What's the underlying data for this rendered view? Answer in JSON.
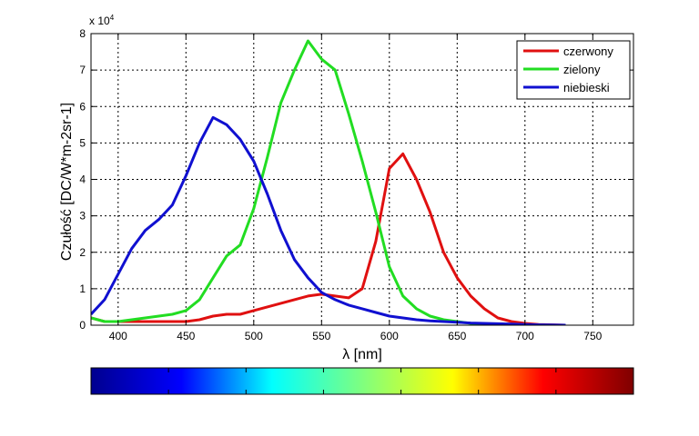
{
  "chart_data": {
    "type": "line",
    "xlabel": "λ [nm]",
    "ylabel": "Czułość [DC/W*m-2sr-1]",
    "y_multiplier": "x 10",
    "y_multiplier_exp": "4",
    "xlim": [
      380,
      780
    ],
    "ylim": [
      0,
      80000
    ],
    "xticks": [
      400,
      450,
      500,
      550,
      600,
      650,
      700,
      750
    ],
    "yticks": [
      0,
      10000,
      20000,
      30000,
      40000,
      50000,
      60000,
      70000,
      80000
    ],
    "ytick_labels": [
      "0",
      "1",
      "2",
      "3",
      "4",
      "5",
      "6",
      "7",
      "8"
    ],
    "grid": true,
    "legend_position": "top-right",
    "series": [
      {
        "name": "czerwony",
        "color": "#e01010",
        "x": [
          380,
          390,
          400,
          420,
          440,
          450,
          460,
          470,
          480,
          490,
          500,
          510,
          520,
          530,
          540,
          550,
          560,
          570,
          580,
          590,
          600,
          610,
          620,
          630,
          640,
          650,
          660,
          670,
          680,
          690,
          700,
          710,
          720,
          730
        ],
        "y": [
          2000,
          1000,
          1000,
          1000,
          1000,
          1000,
          1500,
          2500,
          3000,
          3000,
          4000,
          5000,
          6000,
          7000,
          8000,
          8500,
          8000,
          7500,
          10000,
          23000,
          43000,
          47000,
          40000,
          31000,
          20000,
          13000,
          8000,
          4500,
          2000,
          1000,
          500,
          200,
          100,
          0
        ]
      },
      {
        "name": "zielony",
        "color": "#22dd22",
        "x": [
          380,
          390,
          400,
          410,
          420,
          430,
          440,
          450,
          460,
          470,
          480,
          490,
          500,
          510,
          520,
          530,
          540,
          550,
          560,
          570,
          580,
          590,
          600,
          610,
          620,
          630,
          640,
          650,
          660,
          670,
          680,
          690,
          700
        ],
        "y": [
          2000,
          1000,
          1000,
          1500,
          2000,
          2500,
          3000,
          4000,
          7000,
          13000,
          19000,
          22000,
          32000,
          46000,
          61000,
          70000,
          78000,
          73000,
          70000,
          58000,
          45000,
          31000,
          16000,
          8000,
          4500,
          2500,
          1500,
          1000,
          500,
          300,
          200,
          100,
          0
        ]
      },
      {
        "name": "niebieski",
        "color": "#1010d0",
        "x": [
          380,
          390,
          400,
          410,
          420,
          430,
          440,
          450,
          460,
          470,
          480,
          490,
          500,
          510,
          520,
          530,
          540,
          550,
          560,
          570,
          580,
          590,
          600,
          610,
          620,
          630,
          640,
          650,
          660,
          670,
          680,
          690,
          700,
          710,
          720,
          730
        ],
        "y": [
          3000,
          7000,
          14000,
          21000,
          26000,
          29000,
          33000,
          41000,
          50000,
          57000,
          55000,
          51000,
          45000,
          36000,
          26000,
          18000,
          13000,
          9000,
          7000,
          5500,
          4500,
          3500,
          2500,
          2000,
          1500,
          1200,
          1000,
          800,
          600,
          500,
          400,
          300,
          200,
          100,
          50,
          0
        ]
      }
    ]
  },
  "colorbar": {
    "stops": [
      "#00008f",
      "#0000ff",
      "#00ffff",
      "#7fff7f",
      "#ffff00",
      "#ff0000",
      "#7f0000"
    ]
  }
}
